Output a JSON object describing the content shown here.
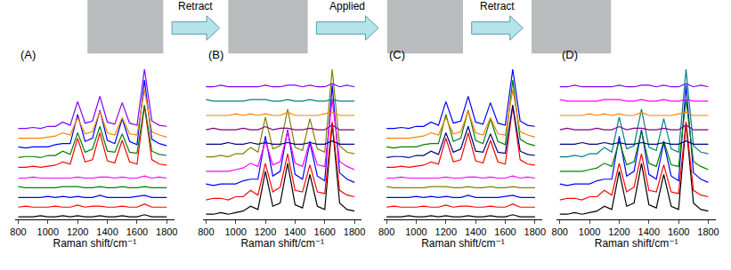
{
  "transitions": [
    "Retract",
    "Applied",
    "Retract"
  ],
  "chart_data": [
    {
      "type": "line",
      "title": "(A)",
      "x_label": "Raman shift/cm⁻¹",
      "tick_labels": "x",
      "xlim": [
        780,
        1850
      ],
      "xticks": [
        800,
        1000,
        1200,
        1400,
        1600,
        1800
      ],
      "x": [
        800,
        850,
        900,
        950,
        1000,
        1050,
        1100,
        1150,
        1200,
        1250,
        1300,
        1350,
        1400,
        1450,
        1500,
        1550,
        1600,
        1650,
        1700,
        1750,
        1800
      ],
      "series": [
        {
          "color": "#000000",
          "values": [
            2,
            2,
            2,
            3,
            2,
            2,
            3,
            2,
            3,
            2,
            2,
            3,
            2,
            2,
            3,
            2,
            2,
            4,
            2,
            2,
            2
          ]
        },
        {
          "color": "#ff0000",
          "values": [
            2,
            3,
            2,
            2,
            2,
            3,
            2,
            2,
            4,
            2,
            3,
            3,
            2,
            2,
            3,
            2,
            2,
            5,
            2,
            2,
            2
          ]
        },
        {
          "color": "#0000ff",
          "values": [
            2,
            2,
            2,
            2,
            3,
            2,
            3,
            2,
            3,
            2,
            2,
            4,
            2,
            2,
            2,
            2,
            3,
            4,
            2,
            2,
            2
          ]
        },
        {
          "color": "#008000",
          "values": [
            3,
            2,
            2,
            2,
            2,
            2,
            3,
            3,
            3,
            2,
            2,
            3,
            2,
            2,
            3,
            2,
            2,
            3,
            2,
            2,
            2
          ]
        },
        {
          "color": "#ff00ff",
          "values": [
            2,
            2,
            3,
            2,
            2,
            2,
            2,
            2,
            3,
            2,
            2,
            3,
            3,
            2,
            3,
            2,
            2,
            4,
            2,
            3,
            2
          ]
        },
        {
          "color": "#ff0000",
          "values": [
            3,
            3,
            4,
            3,
            4,
            5,
            8,
            6,
            30,
            8,
            10,
            35,
            9,
            7,
            28,
            8,
            6,
            60,
            10,
            6,
            5
          ]
        },
        {
          "color": "#008000",
          "values": [
            3,
            4,
            4,
            3,
            5,
            5,
            9,
            6,
            26,
            8,
            11,
            32,
            9,
            8,
            25,
            8,
            7,
            52,
            9,
            6,
            5
          ]
        },
        {
          "color": "#0000ff",
          "values": [
            4,
            3,
            4,
            4,
            4,
            6,
            7,
            7,
            34,
            9,
            12,
            38,
            10,
            7,
            30,
            9,
            6,
            66,
            11,
            7,
            5
          ]
        },
        {
          "color": "#ff8000",
          "values": [
            3,
            3,
            3,
            3,
            4,
            5,
            8,
            6,
            22,
            7,
            9,
            28,
            8,
            6,
            22,
            7,
            6,
            48,
            9,
            6,
            4
          ]
        },
        {
          "color": "#8000ff",
          "values": [
            3,
            3,
            4,
            3,
            5,
            5,
            9,
            6,
            28,
            8,
            10,
            33,
            9,
            7,
            27,
            8,
            6,
            58,
            10,
            6,
            5
          ]
        }
      ]
    },
    {
      "type": "line",
      "title": "(B)",
      "x_label": "Raman shift/cm⁻¹",
      "tick_labels": "x",
      "xlim": [
        780,
        1850
      ],
      "xticks": [
        800,
        1000,
        1200,
        1400,
        1600,
        1800
      ],
      "x": [
        800,
        850,
        900,
        950,
        1000,
        1050,
        1100,
        1150,
        1200,
        1250,
        1300,
        1350,
        1400,
        1450,
        1500,
        1550,
        1600,
        1650,
        1700,
        1750,
        1800
      ],
      "series": [
        {
          "color": "#000000",
          "values": [
            3,
            3,
            4,
            3,
            4,
            5,
            8,
            6,
            30,
            8,
            10,
            35,
            9,
            7,
            28,
            8,
            6,
            60,
            10,
            6,
            5
          ]
        },
        {
          "color": "#ff0000",
          "values": [
            3,
            4,
            4,
            3,
            5,
            5,
            9,
            6,
            26,
            8,
            11,
            32,
            9,
            8,
            25,
            8,
            7,
            52,
            9,
            6,
            5
          ]
        },
        {
          "color": "#0000ff",
          "values": [
            4,
            3,
            4,
            4,
            4,
            6,
            7,
            7,
            34,
            9,
            12,
            38,
            10,
            7,
            30,
            9,
            6,
            66,
            11,
            7,
            5
          ]
        },
        {
          "color": "#ff00ff",
          "values": [
            3,
            3,
            3,
            3,
            4,
            5,
            8,
            6,
            22,
            7,
            9,
            28,
            8,
            6,
            22,
            7,
            6,
            48,
            9,
            6,
            4
          ]
        },
        {
          "color": "#808000",
          "values": [
            3,
            3,
            4,
            3,
            5,
            5,
            9,
            6,
            28,
            8,
            10,
            33,
            9,
            7,
            27,
            8,
            6,
            58,
            10,
            6,
            5
          ]
        },
        {
          "color": "#000080",
          "values": [
            2,
            2,
            2,
            3,
            2,
            2,
            3,
            2,
            3,
            2,
            2,
            3,
            2,
            2,
            3,
            2,
            2,
            4,
            2,
            2,
            2
          ]
        },
        {
          "color": "#800080",
          "values": [
            2,
            3,
            2,
            2,
            2,
            3,
            2,
            2,
            4,
            2,
            3,
            3,
            2,
            2,
            3,
            2,
            2,
            5,
            2,
            2,
            2
          ]
        },
        {
          "color": "#ff8000",
          "values": [
            2,
            2,
            2,
            2,
            3,
            2,
            3,
            2,
            3,
            2,
            2,
            4,
            2,
            2,
            2,
            2,
            3,
            4,
            2,
            2,
            2
          ]
        },
        {
          "color": "#008080",
          "values": [
            3,
            2,
            2,
            2,
            2,
            2,
            3,
            3,
            3,
            2,
            2,
            3,
            2,
            2,
            3,
            2,
            2,
            3,
            2,
            2,
            2
          ]
        },
        {
          "color": "#8000ff",
          "values": [
            2,
            2,
            3,
            2,
            2,
            2,
            2,
            2,
            3,
            2,
            2,
            3,
            3,
            2,
            3,
            2,
            2,
            4,
            2,
            3,
            2
          ]
        }
      ]
    },
    {
      "type": "line",
      "title": "(C)",
      "x_label": "Raman shift/cm⁻¹",
      "tick_labels": "x",
      "xlim": [
        780,
        1850
      ],
      "xticks": [
        800,
        1000,
        1200,
        1400,
        1600,
        1800
      ],
      "x": [
        800,
        850,
        900,
        950,
        1000,
        1050,
        1100,
        1150,
        1200,
        1250,
        1300,
        1350,
        1400,
        1450,
        1500,
        1550,
        1600,
        1650,
        1700,
        1750,
        1800
      ],
      "series": [
        {
          "color": "#000000",
          "values": [
            2,
            2,
            2,
            3,
            2,
            2,
            3,
            2,
            3,
            2,
            2,
            3,
            2,
            2,
            3,
            2,
            2,
            4,
            2,
            2,
            2
          ]
        },
        {
          "color": "#ff0000",
          "values": [
            2,
            3,
            2,
            2,
            2,
            3,
            2,
            2,
            4,
            2,
            3,
            3,
            2,
            2,
            3,
            2,
            2,
            5,
            2,
            2,
            2
          ]
        },
        {
          "color": "#0000ff",
          "values": [
            2,
            2,
            2,
            2,
            3,
            2,
            3,
            2,
            3,
            2,
            2,
            4,
            2,
            2,
            2,
            2,
            3,
            4,
            2,
            2,
            2
          ]
        },
        {
          "color": "#808000",
          "values": [
            3,
            2,
            2,
            2,
            2,
            2,
            3,
            3,
            3,
            2,
            2,
            3,
            2,
            2,
            3,
            2,
            2,
            3,
            2,
            2,
            2
          ]
        },
        {
          "color": "#ff00ff",
          "values": [
            2,
            2,
            3,
            2,
            2,
            2,
            2,
            2,
            3,
            2,
            2,
            3,
            3,
            2,
            3,
            2,
            2,
            4,
            2,
            3,
            2
          ]
        },
        {
          "color": "#ff0000",
          "values": [
            3,
            3,
            4,
            3,
            4,
            5,
            8,
            6,
            30,
            8,
            10,
            35,
            9,
            7,
            28,
            8,
            6,
            60,
            10,
            6,
            5
          ]
        },
        {
          "color": "#000080",
          "values": [
            3,
            4,
            4,
            3,
            5,
            5,
            9,
            6,
            26,
            8,
            11,
            32,
            9,
            8,
            25,
            8,
            7,
            52,
            9,
            6,
            5
          ]
        },
        {
          "color": "#008000",
          "values": [
            4,
            3,
            4,
            4,
            4,
            6,
            7,
            7,
            34,
            9,
            12,
            38,
            10,
            7,
            30,
            9,
            6,
            66,
            11,
            7,
            5
          ]
        },
        {
          "color": "#ff8000",
          "values": [
            3,
            3,
            3,
            3,
            4,
            5,
            8,
            6,
            22,
            7,
            9,
            28,
            8,
            6,
            22,
            7,
            6,
            48,
            9,
            6,
            4
          ]
        },
        {
          "color": "#0000ff",
          "values": [
            3,
            3,
            4,
            3,
            5,
            5,
            9,
            6,
            28,
            8,
            10,
            33,
            9,
            7,
            27,
            8,
            6,
            58,
            10,
            6,
            5
          ]
        }
      ]
    },
    {
      "type": "line",
      "title": "(D)",
      "x_label": "Raman shift/cm⁻¹",
      "tick_labels": "x",
      "xlim": [
        780,
        1850
      ],
      "xticks": [
        800,
        1000,
        1200,
        1400,
        1600,
        1800
      ],
      "x": [
        800,
        850,
        900,
        950,
        1000,
        1050,
        1100,
        1150,
        1200,
        1250,
        1300,
        1350,
        1400,
        1450,
        1500,
        1550,
        1600,
        1650,
        1700,
        1750,
        1800
      ],
      "series": [
        {
          "color": "#000000",
          "values": [
            3,
            3,
            4,
            3,
            4,
            5,
            8,
            6,
            30,
            8,
            10,
            35,
            9,
            7,
            28,
            8,
            6,
            60,
            10,
            6,
            5
          ]
        },
        {
          "color": "#ff0000",
          "values": [
            3,
            4,
            4,
            3,
            5,
            5,
            9,
            6,
            26,
            8,
            11,
            32,
            9,
            8,
            25,
            8,
            7,
            52,
            9,
            6,
            5
          ]
        },
        {
          "color": "#0000ff",
          "values": [
            4,
            3,
            4,
            4,
            4,
            6,
            7,
            7,
            34,
            9,
            12,
            38,
            10,
            7,
            30,
            9,
            6,
            66,
            11,
            7,
            5
          ]
        },
        {
          "color": "#008000",
          "values": [
            3,
            3,
            3,
            3,
            4,
            5,
            8,
            6,
            22,
            7,
            9,
            28,
            8,
            6,
            22,
            7,
            6,
            48,
            9,
            6,
            4
          ]
        },
        {
          "color": "#008080",
          "values": [
            3,
            3,
            4,
            3,
            5,
            5,
            9,
            6,
            28,
            8,
            10,
            33,
            9,
            7,
            27,
            8,
            6,
            58,
            10,
            6,
            5
          ]
        },
        {
          "color": "#000080",
          "values": [
            2,
            2,
            2,
            3,
            2,
            2,
            3,
            2,
            3,
            2,
            2,
            3,
            2,
            2,
            3,
            2,
            2,
            4,
            2,
            2,
            2
          ]
        },
        {
          "color": "#800080",
          "values": [
            2,
            3,
            2,
            2,
            2,
            3,
            2,
            2,
            4,
            2,
            3,
            3,
            2,
            2,
            3,
            2,
            2,
            5,
            2,
            2,
            2
          ]
        },
        {
          "color": "#ff8000",
          "values": [
            2,
            2,
            2,
            2,
            3,
            2,
            3,
            2,
            3,
            2,
            2,
            4,
            2,
            2,
            2,
            2,
            3,
            4,
            2,
            2,
            2
          ]
        },
        {
          "color": "#ff00ff",
          "values": [
            3,
            2,
            2,
            2,
            2,
            2,
            3,
            3,
            3,
            2,
            2,
            3,
            2,
            2,
            3,
            2,
            2,
            3,
            2,
            2,
            2
          ]
        },
        {
          "color": "#8000ff",
          "values": [
            2,
            2,
            3,
            2,
            2,
            2,
            2,
            2,
            3,
            2,
            2,
            3,
            3,
            2,
            3,
            2,
            2,
            4,
            2,
            3,
            2
          ]
        }
      ]
    }
  ]
}
